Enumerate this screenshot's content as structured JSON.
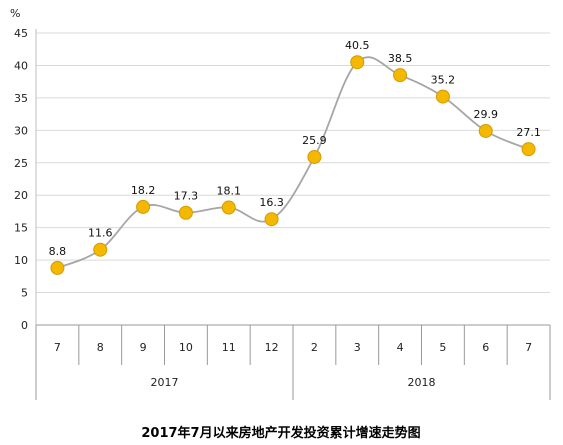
{
  "chart_data": {
    "type": "line",
    "title": "2017年7月以来房地产开发投资累计增速走势图",
    "ylabel": "%",
    "ylim": [
      0,
      45
    ],
    "yticks": [
      "0",
      "5",
      "10",
      "15",
      "20",
      "25",
      "30",
      "35",
      "40",
      "45"
    ],
    "categories": [
      "7",
      "8",
      "9",
      "10",
      "11",
      "12",
      "2",
      "3",
      "4",
      "5",
      "6",
      "7"
    ],
    "groups": [
      {
        "label": "2017",
        "count": 6
      },
      {
        "label": "2018",
        "count": 6
      }
    ],
    "values": [
      8.8,
      11.6,
      18.2,
      17.3,
      18.1,
      16.3,
      25.9,
      40.5,
      38.5,
      35.2,
      29.9,
      27.1
    ],
    "value_labels": [
      "8.8",
      "11.6",
      "18.2",
      "17.3",
      "18.1",
      "16.3",
      "25.9",
      "40.5",
      "38.5",
      "35.2",
      "29.9",
      "27.1"
    ],
    "grid": true,
    "line_color": "#a6a6a6",
    "marker_color": "#f5b800",
    "marker_edge_color": "#d49a00"
  }
}
